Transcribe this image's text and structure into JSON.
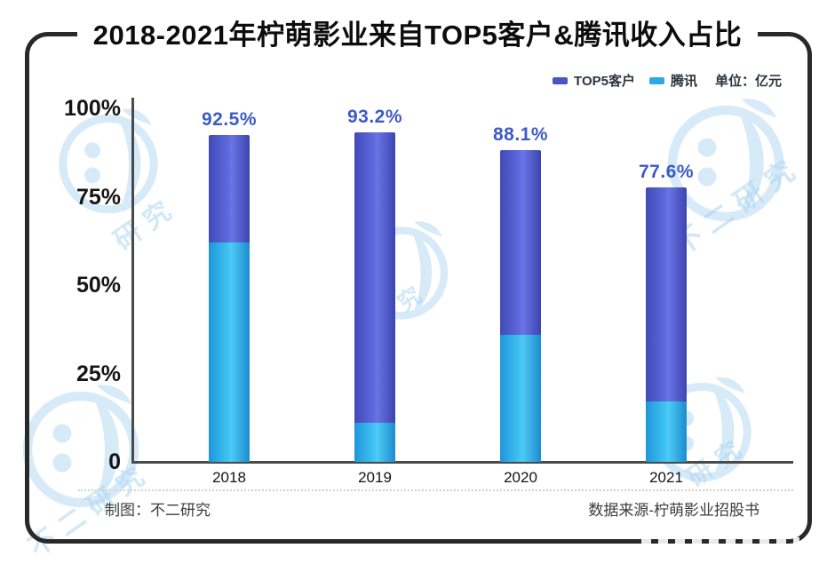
{
  "title": "2018-2021年柠萌影业来自TOP5客户&腾讯收入占比",
  "legend": {
    "top5": "TOP5客户",
    "tencent": "腾讯",
    "unit": "单位：亿元"
  },
  "chart_data": {
    "type": "bar",
    "categories": [
      "2018",
      "2019",
      "2020",
      "2021"
    ],
    "series": [
      {
        "name": "TOP5客户",
        "values": [
          92.5,
          93.2,
          88.1,
          77.6
        ],
        "labels": [
          "92.5%",
          "93.2%",
          "88.1%",
          "77.6%"
        ],
        "color": "#4a55c4"
      },
      {
        "name": "腾讯",
        "values": [
          62,
          11,
          36,
          17
        ],
        "estimated": true,
        "color": "#2fa9e6"
      }
    ],
    "ylim": [
      0,
      100
    ],
    "y_ticks": [
      "100%",
      "75%",
      "50%",
      "25%",
      "0"
    ],
    "grid": false,
    "legend_position": "top-right",
    "bar_style": "overlay: cyan Tencent bar drawn in front of indigo TOP5 bar"
  },
  "footer": {
    "left": "制图：不二研究",
    "right": "数据来源-柠萌影业招股书"
  },
  "watermark": {
    "text": "不二研究"
  },
  "colors": {
    "top5": "#4a55c4",
    "tencent": "#2fa9e6",
    "value_label": "#3d5bc6",
    "axis": "#4a4a4a",
    "frame": "#292929",
    "watermark": "#aed6f2",
    "title_text": "#0d0d0d"
  }
}
